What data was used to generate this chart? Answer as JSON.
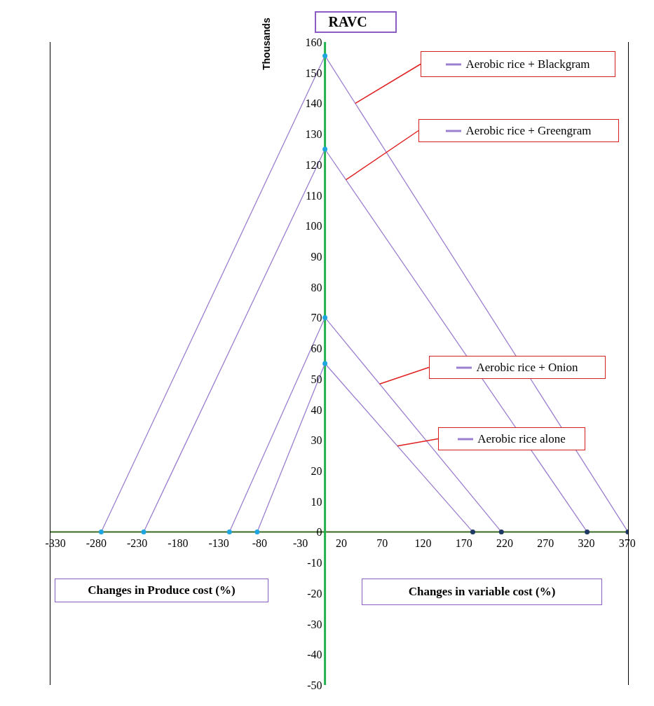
{
  "chart_data": {
    "type": "line",
    "title": "RAVC",
    "ylabel": "Thousands",
    "annotations": [
      "Changes in Produce cost (%)",
      "Changes in variable cost (%)"
    ],
    "xlim": [
      -337,
      372
    ],
    "xticks": [
      -330,
      -280,
      -230,
      -180,
      -130,
      -80,
      -30,
      20,
      70,
      120,
      170,
      220,
      270,
      320,
      370
    ],
    "ylim": [
      -50,
      160
    ],
    "yticks": [
      -50,
      -40,
      -30,
      -20,
      -10,
      0,
      10,
      20,
      30,
      40,
      50,
      60,
      70,
      80,
      90,
      100,
      110,
      120,
      130,
      140,
      150,
      160
    ],
    "grid": false,
    "legend": "right",
    "marker": "circle",
    "series": [
      {
        "name": "Aerobic rice + Blackgram",
        "color": "#9b7fd0",
        "colors": [
          "#1fa5e0",
          "#1fa5e0",
          "#1f3864"
        ],
        "x": [
          -274,
          0,
          371
        ],
        "values": [
          0,
          155.5,
          0
        ]
      },
      {
        "name": "Aerobic rice + Greengram",
        "color": "#9b7fd0",
        "colors": [
          "#1fa5e0",
          "#1fa5e0",
          "#1f3864"
        ],
        "x": [
          -222,
          0,
          321
        ],
        "values": [
          0,
          125,
          0
        ]
      },
      {
        "name": "Aerobic rice + Onion",
        "color": "#9b7fd0",
        "colors": [
          "#1fa5e0",
          "#1fa5e0",
          "#1f3864"
        ],
        "x": [
          -117,
          0,
          216
        ],
        "values": [
          0,
          70,
          0
        ]
      },
      {
        "name": "Aerobic rice alone",
        "color": "#9b7fd0",
        "colors": [
          "#1fa5e0",
          "#1fa5e0",
          "#1f3864"
        ],
        "x": [
          -83,
          0,
          181
        ],
        "values": [
          0,
          55,
          0
        ]
      }
    ]
  }
}
